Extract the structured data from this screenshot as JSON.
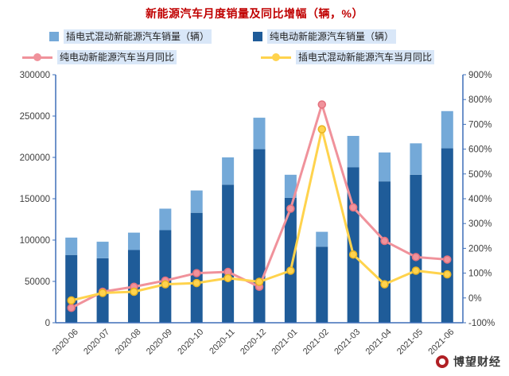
{
  "page": {
    "title": "新能源汽车月度销量及同比增幅（辆，%）",
    "title_color": "#C00000"
  },
  "legend": {
    "items": [
      {
        "id": "phev_sales",
        "label": "插电式混动新能源汽车销量（辆）",
        "marker": "square",
        "color": "#74A9D8"
      },
      {
        "id": "bev_sales",
        "label": "纯电动新能源汽车销量（辆）",
        "marker": "square",
        "color": "#1F5C99"
      },
      {
        "id": "bev_yoy",
        "label": "纯电动新能源汽车当月同比",
        "marker": "line-circle",
        "color": "#F0929B"
      },
      {
        "id": "phev_yoy",
        "label": "插电式混动新能源汽车当月同比",
        "marker": "line-circle",
        "color": "#FFD34D"
      }
    ]
  },
  "watermark": {
    "text": "博望财经"
  },
  "chart_data": {
    "type": "bar",
    "combo": "stacked-bar+line",
    "title": "新能源汽车月度销量及同比增幅（辆，%）",
    "categories": [
      "2020-06",
      "2020-07",
      "2020-08",
      "2020-09",
      "2020-10",
      "2020-11",
      "2020-12",
      "2021-01",
      "2021-02",
      "2021-03",
      "2021-04",
      "2021-05",
      "2021-06"
    ],
    "series": [
      {
        "id": "bev_sales",
        "name": "纯电动新能源汽车销量（辆）",
        "type": "bar",
        "axis": "left",
        "color": "#1F5C99",
        "values": [
          82000,
          78000,
          88000,
          112000,
          133000,
          167000,
          210000,
          151000,
          92000,
          188000,
          171000,
          179000,
          211000
        ]
      },
      {
        "id": "phev_sales",
        "name": "插电式混动新能源汽车销量（辆）",
        "type": "bar",
        "axis": "left",
        "color": "#74A9D8",
        "values": [
          21000,
          20000,
          21000,
          26000,
          27000,
          33000,
          38000,
          28000,
          18000,
          38000,
          35000,
          38000,
          45000
        ]
      },
      {
        "id": "bev_yoy",
        "name": "纯电动新能源汽车当月同比",
        "type": "line",
        "axis": "right",
        "color": "#F0929B",
        "marker_stroke": "#E4717E",
        "values": [
          -40,
          25,
          45,
          70,
          100,
          105,
          45,
          360,
          780,
          365,
          230,
          165,
          155
        ]
      },
      {
        "id": "phev_yoy",
        "name": "插电式混动新能源汽车当月同比",
        "type": "line",
        "axis": "right",
        "color": "#FFD34D",
        "marker_stroke": "#E8B422",
        "values": [
          -10,
          20,
          25,
          55,
          60,
          80,
          65,
          110,
          680,
          175,
          55,
          110,
          95
        ]
      }
    ],
    "left_axis": {
      "min": 0,
      "max": 300000,
      "tick_values": [
        0,
        50000,
        100000,
        150000,
        200000,
        250000,
        300000
      ],
      "tick_labels": [
        "0",
        "50000",
        "100000",
        "150000",
        "200000",
        "250000",
        "300000"
      ]
    },
    "right_axis": {
      "min": -100,
      "max": 900,
      "suffix": "%",
      "tick_values": [
        -100,
        0,
        100,
        200,
        300,
        400,
        500,
        600,
        700,
        800,
        900
      ],
      "tick_labels": [
        "-100%",
        "0%",
        "100%",
        "200%",
        "300%",
        "400%",
        "500%",
        "600%",
        "700%",
        "800%",
        "900%"
      ]
    },
    "axis_color": "#3E6FB8",
    "grid": false,
    "legend_position": "top"
  }
}
